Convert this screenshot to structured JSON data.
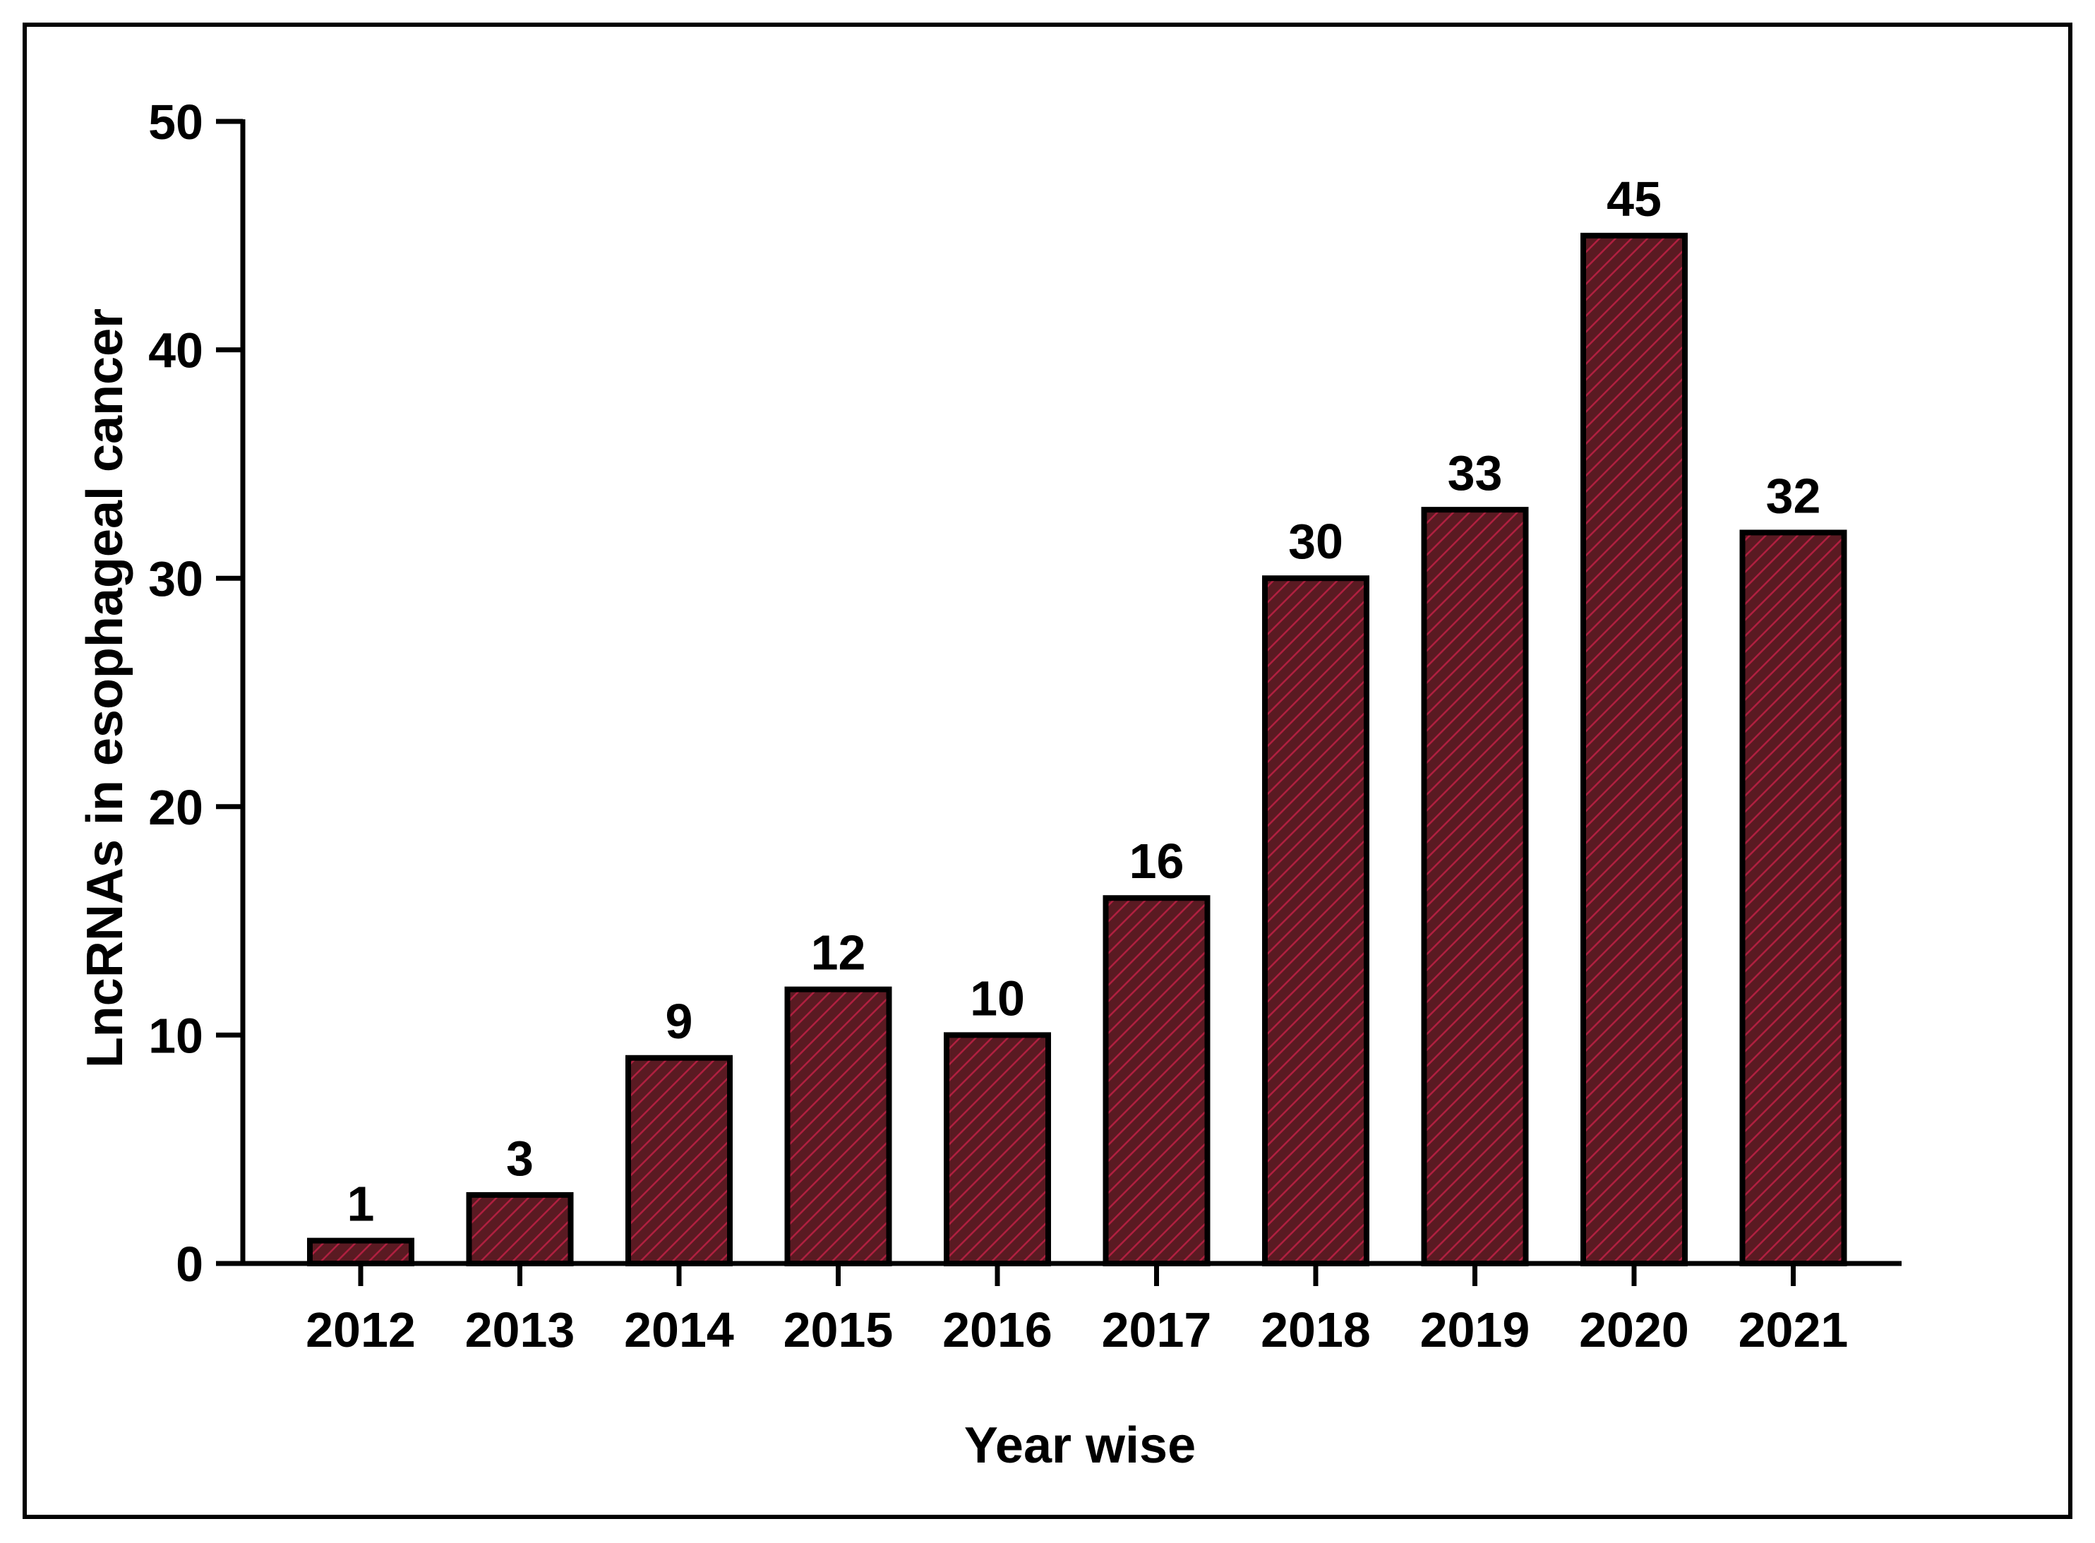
{
  "chart_data": {
    "type": "bar",
    "categories": [
      "2012",
      "2013",
      "2014",
      "2015",
      "2016",
      "2017",
      "2018",
      "2019",
      "2020",
      "2021"
    ],
    "values": [
      1,
      3,
      9,
      12,
      10,
      16,
      30,
      33,
      45,
      32
    ],
    "data_labels": [
      "1",
      "3",
      "9",
      "12",
      "10",
      "16",
      "30",
      "33",
      "45",
      "32"
    ],
    "title": "",
    "xlabel": "Year wise",
    "ylabel": "LncRNAs in esophageal cancer",
    "ylim": [
      0,
      50
    ],
    "yticks": [
      0,
      10,
      20,
      30,
      40,
      50
    ],
    "ytick_labels": [
      "0",
      "10",
      "20",
      "30",
      "40",
      "50"
    ],
    "grid": false,
    "legend": "none",
    "bar_fill_color": "#5a1a22",
    "bar_hatch_color": "#b02040",
    "bar_edge_color": "#000000",
    "frame_color": "#000000"
  }
}
